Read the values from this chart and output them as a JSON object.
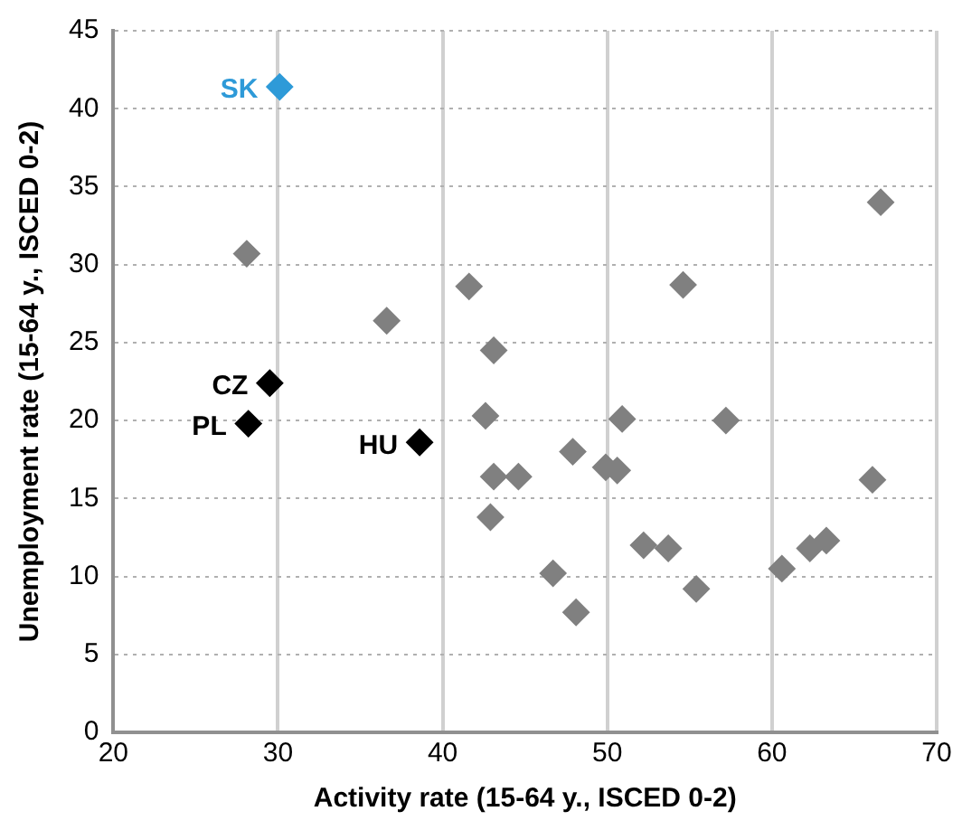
{
  "chart_data": {
    "type": "scatter",
    "xlabel": "Activity rate (15-64 y., ISCED 0-2)",
    "ylabel": "Unemployment rate (15-64 y., ISCED 0-2)",
    "xlim": [
      20,
      70
    ],
    "xticks": [
      20,
      30,
      40,
      50,
      60,
      70
    ],
    "ylim": [
      0,
      45
    ],
    "yticks": [
      0,
      5,
      10,
      15,
      20,
      25,
      30,
      35,
      40,
      45
    ],
    "grid": true,
    "marker": "diamond",
    "legend": false,
    "series": [
      {
        "color": "#808080",
        "x": [
          28.1,
          36.6,
          41.6,
          43.1,
          42.6,
          43.1,
          44.6,
          42.9,
          47.9,
          49.9,
          50.6,
          50.9,
          46.7,
          48.1,
          52.2,
          53.7,
          55.4,
          54.6,
          57.2,
          60.6,
          62.3,
          63.3,
          66.1,
          66.6
        ],
        "values": [
          30.7,
          26.4,
          28.6,
          24.5,
          20.3,
          16.4,
          16.4,
          13.8,
          18.0,
          17.0,
          16.8,
          20.1,
          10.2,
          7.7,
          12.0,
          11.8,
          9.2,
          28.7,
          20.0,
          10.5,
          11.8,
          12.3,
          16.2,
          34.0
        ]
      },
      {
        "color": "#000000",
        "x": [
          29.5,
          28.2,
          38.6
        ],
        "values": [
          22.4,
          19.8,
          18.6
        ]
      },
      {
        "color": "#2e9ad8",
        "x": [
          30.1
        ],
        "values": [
          41.4
        ]
      }
    ],
    "annotations": [
      {
        "text": "SK",
        "x": 30.1,
        "y": 41.4
      },
      {
        "text": "CZ",
        "x": 29.5,
        "y": 22.4
      },
      {
        "text": "PL",
        "x": 28.2,
        "y": 19.8
      },
      {
        "text": "HU",
        "x": 38.6,
        "y": 18.6
      }
    ]
  }
}
